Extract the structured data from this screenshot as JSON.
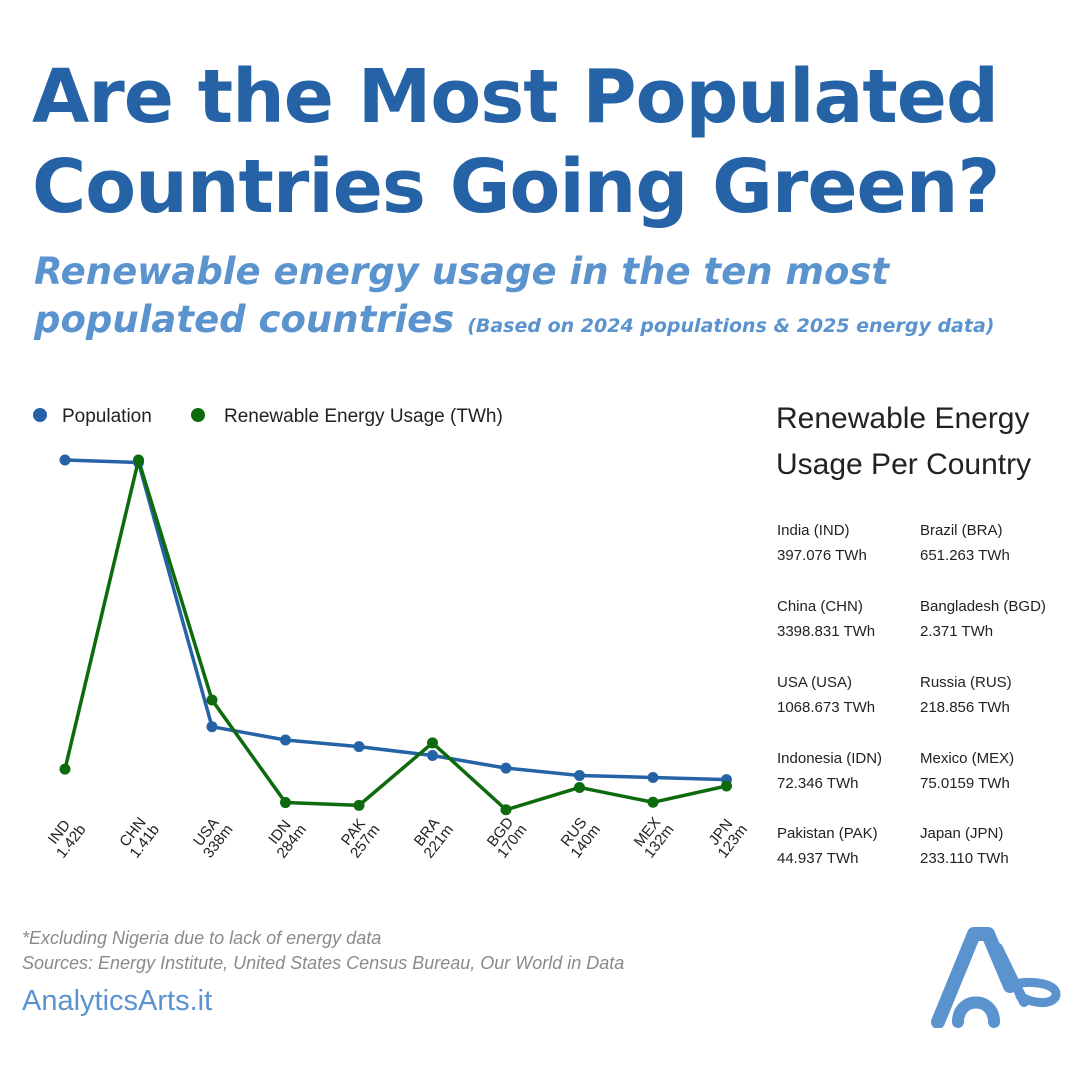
{
  "title": "Are the Most Populated Countries Going Green?",
  "subtitle": "Renewable energy usage in the ten most populated countries",
  "subtitle_note": "(Based on 2024 populations & 2025 energy data)",
  "colors": {
    "title": "#2563a6",
    "subtitle": "#5b93cf",
    "population": "#2563a6",
    "energy": "#0d6b0d"
  },
  "chart_data": {
    "type": "line",
    "categories": [
      "IND",
      "CHN",
      "USA",
      "IDN",
      "PAK",
      "BRA",
      "BGD",
      "RUS",
      "MEX",
      "JPN"
    ],
    "population_labels": [
      "1.42b",
      "1.41b",
      "338m",
      "284m",
      "257m",
      "221m",
      "170m",
      "140m",
      "132m",
      "123m"
    ],
    "legend": [
      "Population",
      "Renewable Energy Usage (TWh)"
    ],
    "series": [
      {
        "name": "Population",
        "unit": "millions",
        "values": [
          1420,
          1410,
          338,
          284,
          257,
          221,
          170,
          140,
          132,
          123
        ]
      },
      {
        "name": "Renewable Energy Usage (TWh)",
        "unit": "TWh",
        "values": [
          397.076,
          3398.831,
          1068.673,
          72.346,
          44.937,
          651.263,
          2.371,
          218.856,
          75.0159,
          233.11
        ]
      }
    ]
  },
  "panel": {
    "title_line1": "Renewable Energy",
    "title_line2": "Usage Per Country",
    "countries": [
      {
        "name": "India (IND)",
        "value": "397.076 TWh"
      },
      {
        "name": "China (CHN)",
        "value": "3398.831 TWh"
      },
      {
        "name": "USA (USA)",
        "value": "1068.673 TWh"
      },
      {
        "name": "Indonesia (IDN)",
        "value": "72.346 TWh"
      },
      {
        "name": "Pakistan (PAK)",
        "value": "44.937 TWh"
      },
      {
        "name": "Brazil (BRA)",
        "value": "651.263 TWh"
      },
      {
        "name": "Bangladesh (BGD)",
        "value": "2.371 TWh"
      },
      {
        "name": "Russia (RUS)",
        "value": "218.856 TWh"
      },
      {
        "name": "Mexico (MEX)",
        "value": "75.0159 TWh"
      },
      {
        "name": "Japan (JPN)",
        "value": "233.110 TWh"
      }
    ]
  },
  "footnote1": "*Excluding Nigeria due to lack of energy data",
  "footnote2": "Sources: Energy Institute, United States Census Bureau, Our World in Data",
  "brand": "AnalyticsArts.it"
}
